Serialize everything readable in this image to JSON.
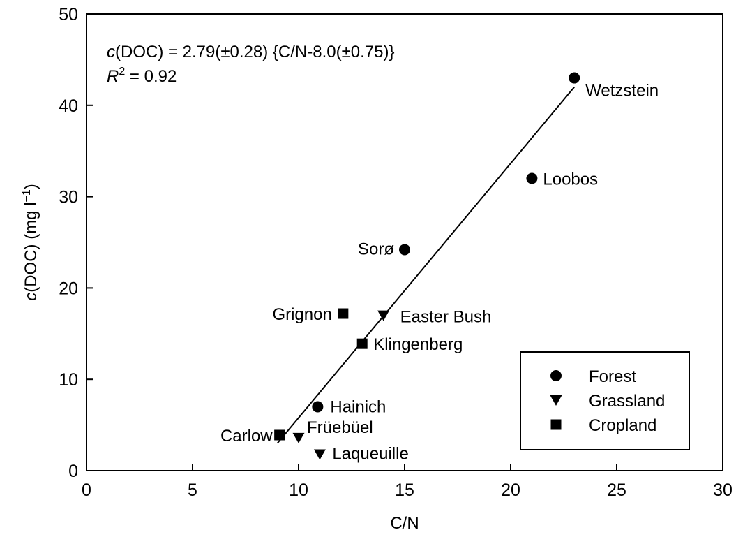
{
  "chart_data": {
    "type": "scatter",
    "xlabel": "C/N",
    "ylabel": {
      "italic": "c",
      "text": "(DOC) (mg l",
      "sup": "−1",
      "close": ")"
    },
    "xlim": [
      0,
      30
    ],
    "ylim": [
      0,
      50
    ],
    "x_ticks": [
      0,
      5,
      10,
      15,
      20,
      25,
      30
    ],
    "y_ticks": [
      0,
      10,
      20,
      30,
      40,
      50
    ],
    "grid": false,
    "legend_position": "bottom-right",
    "series": [
      {
        "name": "Forest",
        "marker": "circle",
        "points": [
          {
            "label": "Wetzstein",
            "x": 23,
            "y": 43
          },
          {
            "label": "Loobos",
            "x": 21,
            "y": 32
          },
          {
            "label": "Sorø",
            "x": 15,
            "y": 24.2
          },
          {
            "label": "Hainich",
            "x": 10.9,
            "y": 7
          }
        ]
      },
      {
        "name": "Grassland",
        "marker": "triangle-down",
        "points": [
          {
            "label": "Easter Bush",
            "x": 14,
            "y": 17
          },
          {
            "label": "Früebüel",
            "x": 10,
            "y": 3.6
          },
          {
            "label": "Laqueuille",
            "x": 11,
            "y": 1.8
          }
        ]
      },
      {
        "name": "Cropland",
        "marker": "square",
        "points": [
          {
            "label": "Grignon",
            "x": 12.1,
            "y": 17.2
          },
          {
            "label": "Klingenberg",
            "x": 13,
            "y": 13.9
          },
          {
            "label": "Carlow",
            "x": 9.1,
            "y": 3.9
          }
        ]
      }
    ],
    "fit_line": {
      "x_start": 9,
      "y_start": 3,
      "x_end": 23,
      "y_end": 42
    },
    "equation": {
      "line1": "(DOC) = 2.79(±0.28) {C/N-8.0(±0.75)}",
      "line1_italic": "c",
      "r2_prefix": "R",
      "r2_sup": "2",
      "r2_value": " = 0.92"
    }
  }
}
